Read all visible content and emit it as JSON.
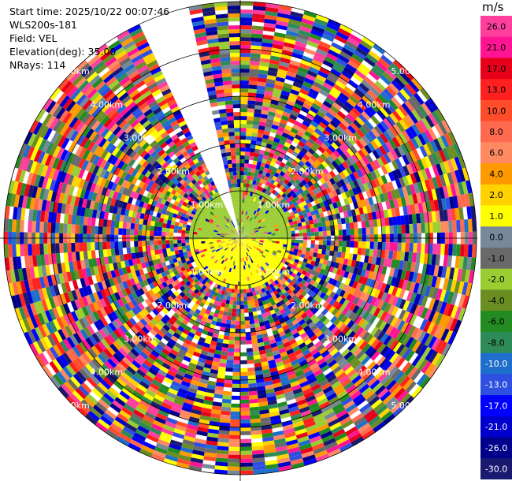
{
  "info": {
    "start_time": "Start time: 2025/10/22 00:07:46",
    "instrument": "WLS200s-181",
    "field": "Field: VEL",
    "elevation": "Elevation(deg): 35.00",
    "nrays": "NRays: 114"
  },
  "colorbar": {
    "unit": "m/s",
    "ticks": [
      "26.0",
      "21.0",
      "17.0",
      "13.0",
      "10.0",
      "8.0",
      "6.0",
      "4.0",
      "2.0",
      "1.0",
      "0.0",
      "-1.0",
      "-2.0",
      "-4.0",
      "-6.0",
      "-8.0",
      "-10.0",
      "-13.0",
      "-17.0",
      "-21.0",
      "-26.0",
      "-30.0"
    ],
    "colors": [
      "#ff3e9e",
      "#ff1493",
      "#e6001a",
      "#ff2020",
      "#ff4c2a",
      "#ff6a4f",
      "#ff8a62",
      "#ff9900",
      "#ffd200",
      "#ffff00",
      "#778899",
      "#696969",
      "#9acd32",
      "#6b8e23",
      "#228b22",
      "#2e8b57",
      "#1e6fcc",
      "#2f4fe0",
      "#0000ff",
      "#0000cd",
      "#00008b",
      "#191970"
    ]
  },
  "range_labels": [
    "1.00km",
    "2.00km",
    "3.00km",
    "4.00km",
    "5.00km"
  ],
  "chart_data": {
    "type": "ppi",
    "field": "VEL",
    "units": "m/s",
    "elevation_deg": 35.0,
    "nrays": 114,
    "range_rings_km": [
      1,
      2,
      3,
      4,
      5
    ],
    "missing_sector_deg": [
      335,
      348
    ],
    "clim": [
      -30,
      26
    ]
  }
}
